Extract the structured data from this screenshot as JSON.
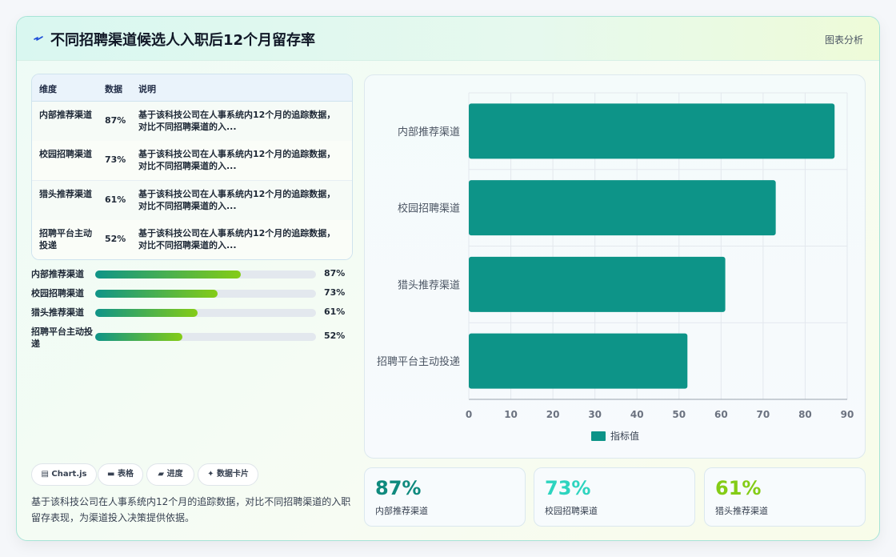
{
  "header": {
    "title": "不同招聘渠道候选人入职后12个月留存率",
    "action_label": "图表分析"
  },
  "table": {
    "columns": [
      "维度",
      "数据",
      "说明"
    ],
    "rows": [
      {
        "dimension": "内部推荐渠道",
        "value": "87%",
        "desc": "基于该科技公司在人事系统内12个月的追踪数据，对比不同招聘渠道的入..."
      },
      {
        "dimension": "校园招聘渠道",
        "value": "73%",
        "desc": "基于该科技公司在人事系统内12个月的追踪数据，对比不同招聘渠道的入..."
      },
      {
        "dimension": "猎头推荐渠道",
        "value": "61%",
        "desc": "基于该科技公司在人事系统内12个月的追踪数据，对比不同招聘渠道的入..."
      },
      {
        "dimension": "招聘平台主动投递",
        "value": "52%",
        "desc": "基于该科技公司在人事系统内12个月的追踪数据，对比不同招聘渠道的入..."
      }
    ]
  },
  "progress": [
    {
      "label": "内部推荐渠道",
      "value_text": "87%",
      "fraction": 0.87
    },
    {
      "label": "校园招聘渠道",
      "value_text": "73%",
      "fraction": 0.73
    },
    {
      "label": "猎头推荐渠道",
      "value_text": "61%",
      "fraction": 0.61
    },
    {
      "label": "招聘平台主动投递",
      "value_text": "52%",
      "fraction": 0.52
    }
  ],
  "chips": [
    {
      "label": "Chart.js",
      "icon": "chart-icon"
    },
    {
      "label": "表格",
      "icon": "table-icon"
    },
    {
      "label": "进度",
      "icon": "progress-icon"
    },
    {
      "label": "数据卡片",
      "icon": "sparkle-icon"
    }
  ],
  "footer_text": "基于该科技公司在人事系统内12个月的追踪数据，对比不同招聘渠道的入职留存表现，为渠道投入决策提供依据。",
  "stats": [
    {
      "value": "87%",
      "label": "内部推荐渠道",
      "color": "#0f8a7e"
    },
    {
      "value": "73%",
      "label": "校园招聘渠道",
      "color": "#2dd4bf"
    },
    {
      "value": "61%",
      "label": "猎头推荐渠道",
      "color": "#84cc16"
    }
  ],
  "colors": {
    "bar": "#0d9488",
    "accent_green": "#84cc16"
  },
  "chart_data": {
    "type": "bar",
    "orientation": "horizontal",
    "categories": [
      "内部推荐渠道",
      "校园招聘渠道",
      "猎头推荐渠道",
      "招聘平台主动投递"
    ],
    "series": [
      {
        "name": "指标值",
        "values": [
          87,
          73,
          61,
          52
        ]
      }
    ],
    "xlim": [
      0,
      90
    ],
    "xticks": [
      "0",
      "10",
      "20",
      "30",
      "40",
      "50",
      "60",
      "70",
      "80",
      "90"
    ],
    "grid": true,
    "legend": "bottom"
  }
}
